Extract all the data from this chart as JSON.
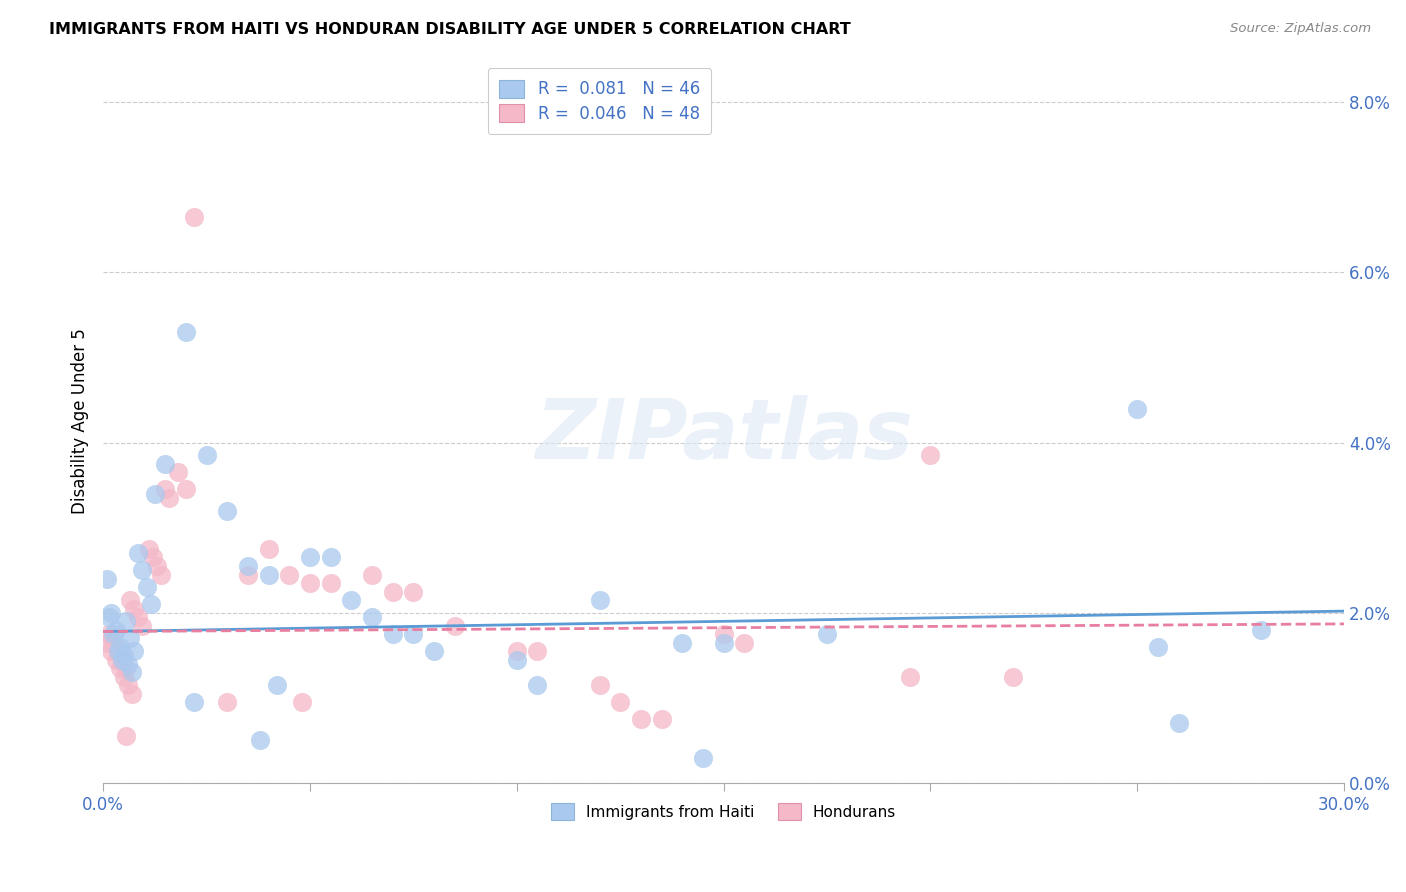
{
  "title": "IMMIGRANTS FROM HAITI VS HONDURAN DISABILITY AGE UNDER 5 CORRELATION CHART",
  "source": "Source: ZipAtlas.com",
  "ylabel": "Disability Age Under 5",
  "yticks": [
    "0.0%",
    "2.0%",
    "4.0%",
    "6.0%",
    "8.0%"
  ],
  "ytick_vals": [
    0.0,
    2.0,
    4.0,
    6.0,
    8.0
  ],
  "xlim": [
    0.0,
    30.0
  ],
  "ylim": [
    0.0,
    8.5
  ],
  "haiti_color": "#aac9ee",
  "honduran_color": "#f4b8c8",
  "haiti_line_color": "#5b9bd5",
  "honduran_line_color": "#e87fa0",
  "haiti_scatter": [
    [
      0.1,
      2.4
    ],
    [
      0.2,
      2.0
    ],
    [
      0.3,
      1.8
    ],
    [
      0.4,
      1.6
    ],
    [
      0.5,
      1.5
    ],
    [
      0.6,
      1.4
    ],
    [
      0.7,
      1.3
    ],
    [
      0.15,
      1.95
    ],
    [
      0.25,
      1.75
    ],
    [
      0.35,
      1.55
    ],
    [
      0.45,
      1.45
    ],
    [
      0.55,
      1.9
    ],
    [
      0.65,
      1.7
    ],
    [
      0.75,
      1.55
    ],
    [
      0.85,
      2.7
    ],
    [
      0.95,
      2.5
    ],
    [
      1.05,
      2.3
    ],
    [
      1.15,
      2.1
    ],
    [
      1.25,
      3.4
    ],
    [
      1.5,
      3.75
    ],
    [
      2.0,
      5.3
    ],
    [
      2.5,
      3.85
    ],
    [
      3.0,
      3.2
    ],
    [
      3.5,
      2.55
    ],
    [
      4.0,
      2.45
    ],
    [
      5.0,
      2.65
    ],
    [
      5.5,
      2.65
    ],
    [
      6.0,
      2.15
    ],
    [
      6.5,
      1.95
    ],
    [
      7.0,
      1.75
    ],
    [
      7.5,
      1.75
    ],
    [
      8.0,
      1.55
    ],
    [
      10.0,
      1.45
    ],
    [
      12.0,
      2.15
    ],
    [
      14.0,
      1.65
    ],
    [
      15.0,
      1.65
    ],
    [
      17.5,
      1.75
    ],
    [
      25.0,
      4.4
    ],
    [
      28.0,
      1.8
    ],
    [
      2.2,
      0.95
    ],
    [
      3.8,
      0.5
    ],
    [
      4.2,
      1.15
    ],
    [
      10.5,
      1.15
    ],
    [
      25.5,
      1.6
    ],
    [
      14.5,
      0.3
    ],
    [
      26.0,
      0.7
    ]
  ],
  "honduran_scatter": [
    [
      0.1,
      1.65
    ],
    [
      0.2,
      1.55
    ],
    [
      0.3,
      1.45
    ],
    [
      0.4,
      1.35
    ],
    [
      0.5,
      1.25
    ],
    [
      0.6,
      1.15
    ],
    [
      0.7,
      1.05
    ],
    [
      0.15,
      1.75
    ],
    [
      0.25,
      1.65
    ],
    [
      0.35,
      1.55
    ],
    [
      0.45,
      1.45
    ],
    [
      0.55,
      1.35
    ],
    [
      0.65,
      2.15
    ],
    [
      0.75,
      2.05
    ],
    [
      0.85,
      1.95
    ],
    [
      0.95,
      1.85
    ],
    [
      1.1,
      2.75
    ],
    [
      1.2,
      2.65
    ],
    [
      1.3,
      2.55
    ],
    [
      1.4,
      2.45
    ],
    [
      1.5,
      3.45
    ],
    [
      1.6,
      3.35
    ],
    [
      2.2,
      6.65
    ],
    [
      1.8,
      3.65
    ],
    [
      2.0,
      3.45
    ],
    [
      3.5,
      2.45
    ],
    [
      4.0,
      2.75
    ],
    [
      4.5,
      2.45
    ],
    [
      5.0,
      2.35
    ],
    [
      5.5,
      2.35
    ],
    [
      6.5,
      2.45
    ],
    [
      7.0,
      2.25
    ],
    [
      7.5,
      2.25
    ],
    [
      8.5,
      1.85
    ],
    [
      10.0,
      1.55
    ],
    [
      10.5,
      1.55
    ],
    [
      12.0,
      1.15
    ],
    [
      12.5,
      0.95
    ],
    [
      13.0,
      0.75
    ],
    [
      13.5,
      0.75
    ],
    [
      15.0,
      1.75
    ],
    [
      15.5,
      1.65
    ],
    [
      20.0,
      3.85
    ],
    [
      22.0,
      1.25
    ],
    [
      3.0,
      0.95
    ],
    [
      4.8,
      0.95
    ],
    [
      19.5,
      1.25
    ],
    [
      0.55,
      0.55
    ]
  ],
  "haiti_R": 0.081,
  "haiti_N": 46,
  "honduran_R": 0.046,
  "honduran_N": 48,
  "haiti_slope": 0.008,
  "haiti_intercept": 1.78,
  "honduran_slope": 0.003,
  "honduran_intercept": 1.78
}
